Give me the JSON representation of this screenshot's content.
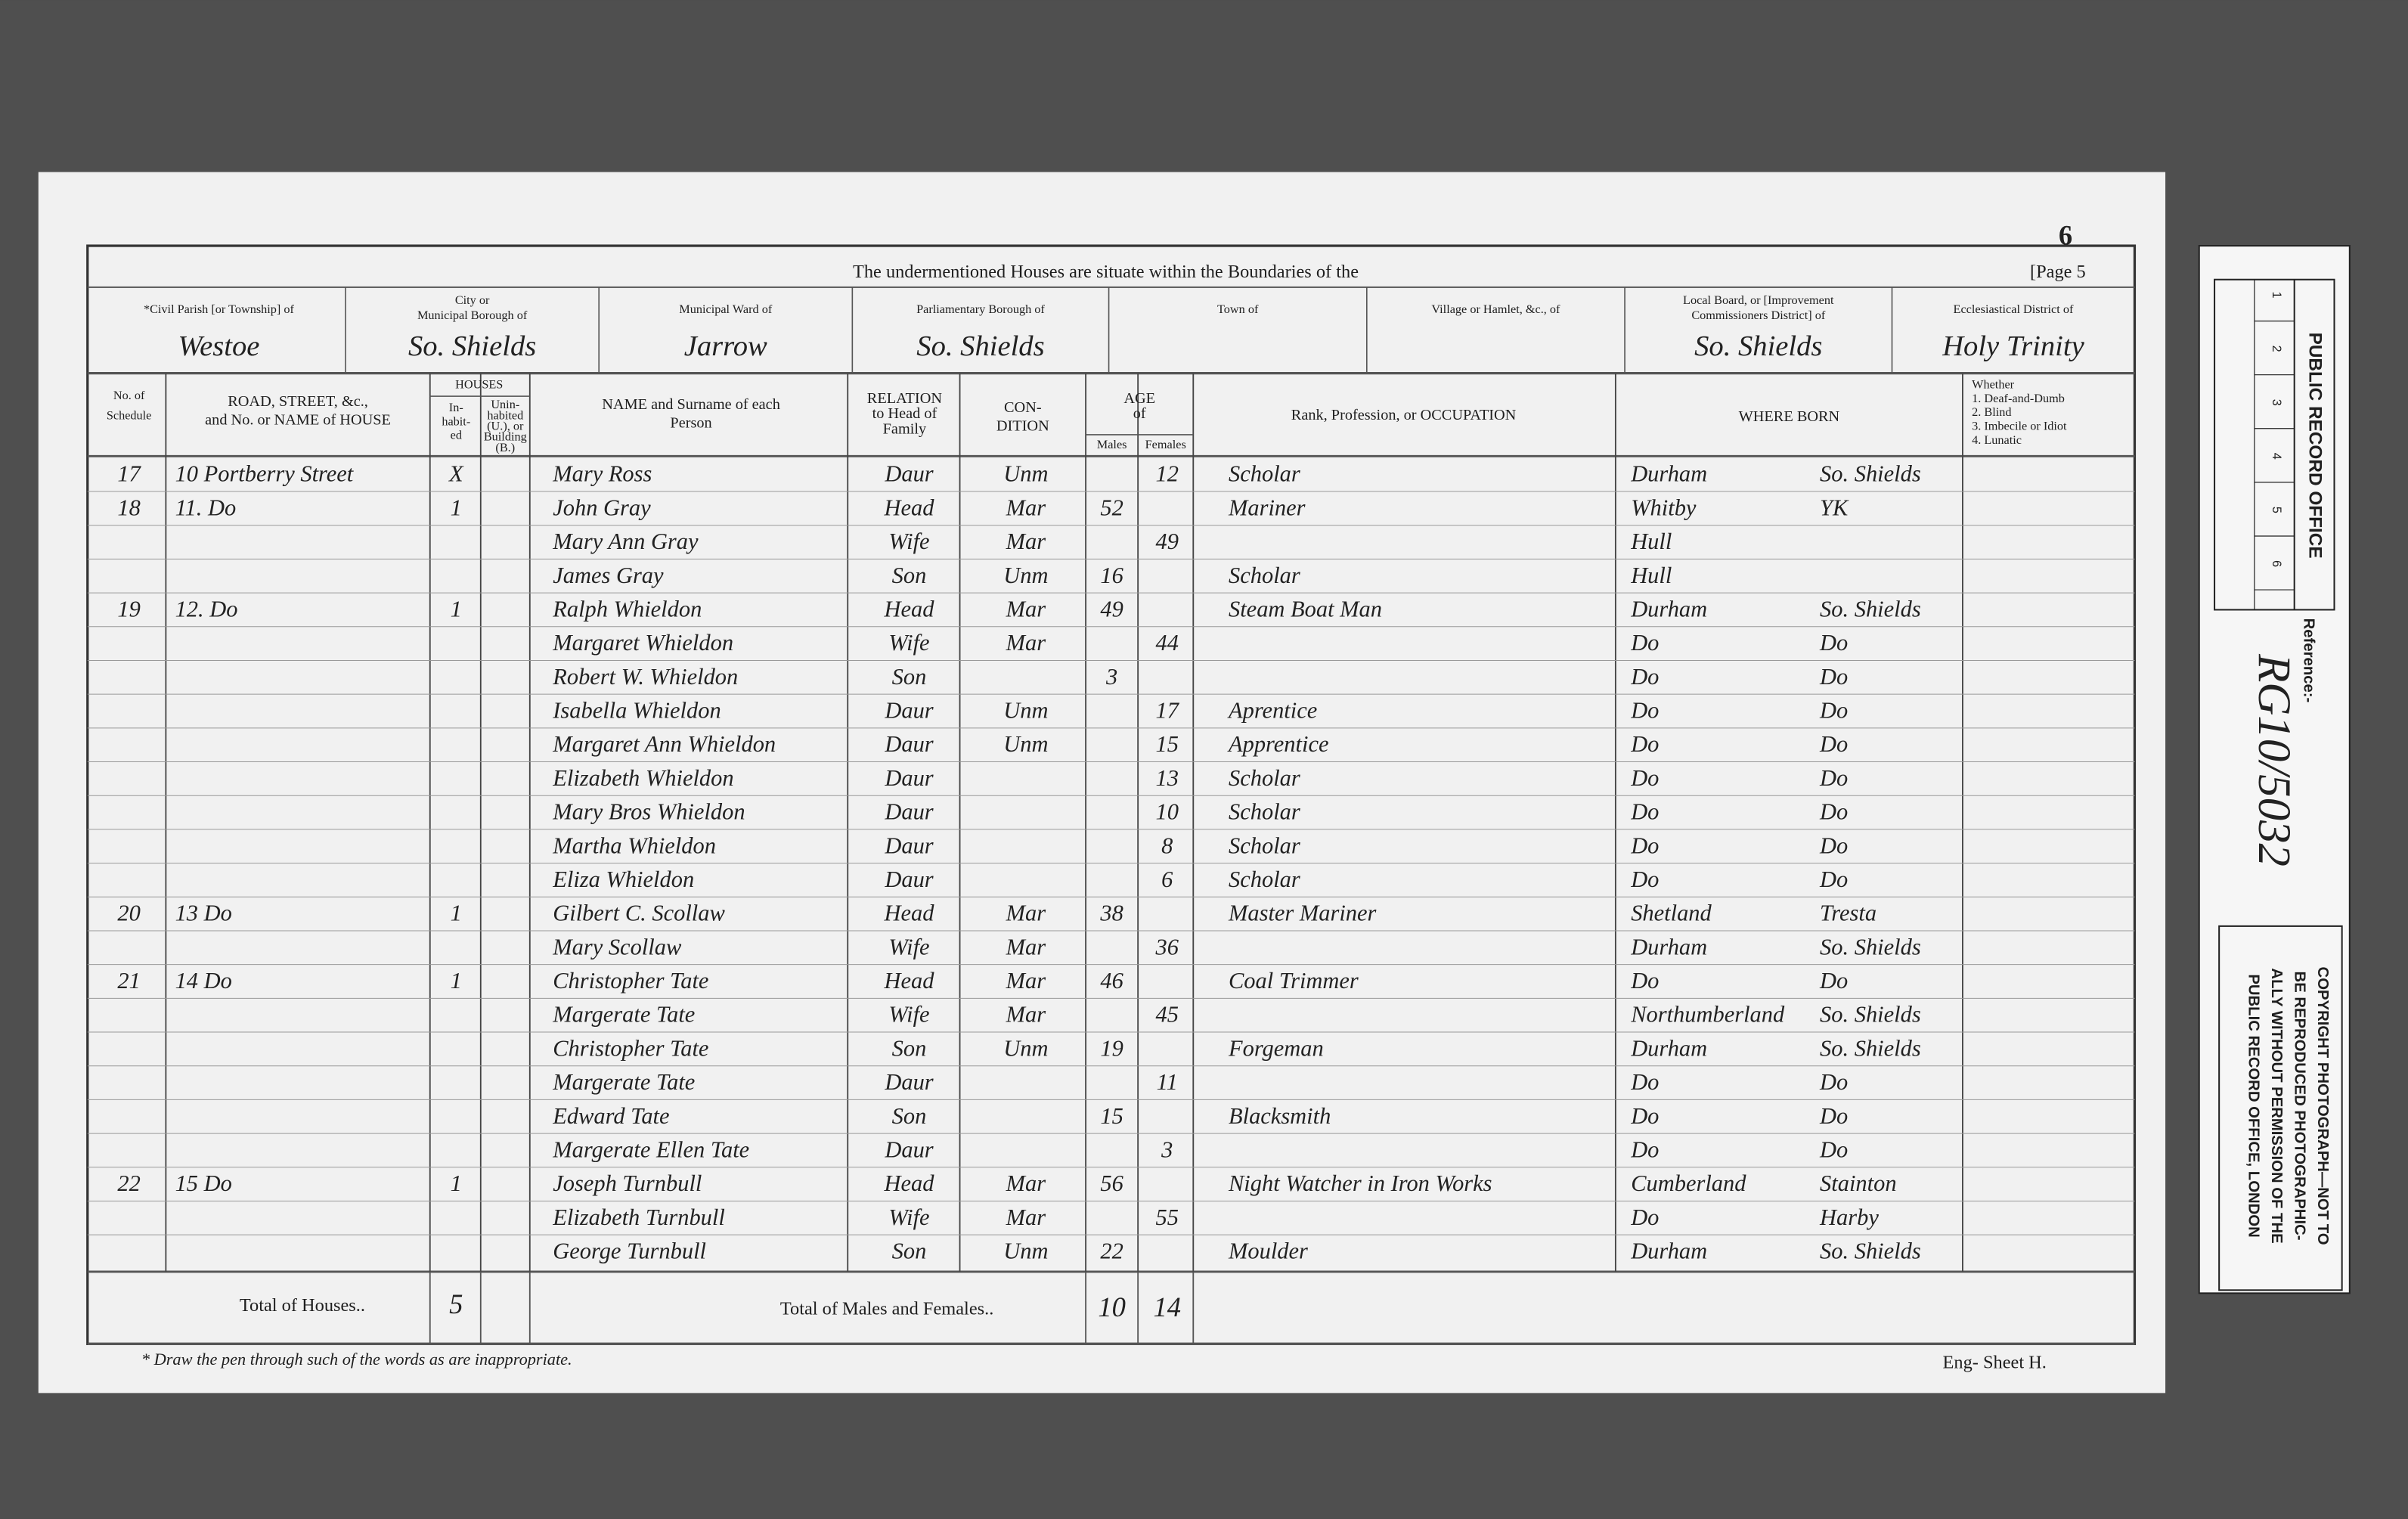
{
  "page_number": "6",
  "header": {
    "title": "The undermentioned Houses are situate within the Boundaries of the",
    "page": "[Page 5"
  },
  "boundaries": [
    {
      "label": [
        "*Civil Parish [or Township] of"
      ],
      "value": "Westoe"
    },
    {
      "label": [
        "City or",
        "Municipal Borough of"
      ],
      "value": "So. Shields"
    },
    {
      "label": [
        "Municipal Ward of"
      ],
      "value": "Jarrow"
    },
    {
      "label": [
        "Parliamentary Borough of"
      ],
      "value": "So. Shields"
    },
    {
      "label": [
        "Town of"
      ]
    },
    {
      "label": [
        "Village or Hamlet, &c., of"
      ]
    },
    {
      "label": [
        "Local Board, or [Improvement",
        "Commissioners District] of"
      ],
      "value": "So. Shields"
    },
    {
      "label": [
        "Ecclesiastical District of"
      ],
      "value": "Holy Trinity"
    }
  ],
  "column_headers": {
    "schedule": [
      "No. of",
      "Schedule"
    ],
    "address": [
      "ROAD, STREET, &c.,",
      "and No. or NAME of HOUSE"
    ],
    "houses": [
      "HOUSES"
    ],
    "inhabited": [
      "In-",
      "habit-",
      "ed"
    ],
    "uninhabited": [
      "Unin-",
      "habited",
      "(U.), or",
      "Building",
      "(B.)"
    ],
    "name": [
      "NAME and Surname of each",
      "Person"
    ],
    "relation": [
      "RELATION",
      "to Head of",
      "Family"
    ],
    "condition": [
      "CON-",
      "DITION"
    ],
    "age": [
      "AGE",
      "of"
    ],
    "males": [
      "Males"
    ],
    "females": [
      "Females"
    ],
    "occupation": [
      "Rank, Profession, or OCCUPATION"
    ],
    "where_born": [
      "WHERE BORN"
    ],
    "infirmity": [
      "Whether",
      "1. Deaf-and-Dumb",
      "2. Blind",
      "3. Imbecile or Idiot",
      "4. Lunatic"
    ]
  },
  "table": {
    "rows": [
      {
        "schedule": 17,
        "address": "10 Portberry Street",
        "inhabited": "X",
        "name": "Mary Ross",
        "relation": "Daur",
        "condition": "Unm",
        "female_age": 12,
        "occupation": "Scholar",
        "born_county": "Durham",
        "born_town": "So. Shields"
      },
      {
        "schedule": 18,
        "address": "11. Do",
        "inhabited": 1,
        "name": "John Gray",
        "relation": "Head",
        "condition": "Mar",
        "male_age": 52,
        "occupation": "Mariner",
        "born_county": "Whitby",
        "born_town": "YK"
      },
      {
        "name": "Mary Ann Gray",
        "relation": "Wife",
        "condition": "Mar",
        "female_age": 49,
        "born_county": "Hull"
      },
      {
        "name": "James Gray",
        "relation": "Son",
        "condition": "Unm",
        "male_age": 16,
        "occupation": "Scholar",
        "born_county": "Hull"
      },
      {
        "schedule": 19,
        "address": "12. Do",
        "inhabited": 1,
        "name": "Ralph Whieldon",
        "relation": "Head",
        "condition": "Mar",
        "male_age": 49,
        "occupation": "Steam Boat Man",
        "born_county": "Durham",
        "born_town": "So. Shields"
      },
      {
        "name": "Margaret Whieldon",
        "relation": "Wife",
        "condition": "Mar",
        "female_age": 44,
        "born_county": "Do",
        "born_town": "Do"
      },
      {
        "name": "Robert W. Whieldon",
        "relation": "Son",
        "male_age": 3,
        "born_county": "Do",
        "born_town": "Do"
      },
      {
        "name": "Isabella Whieldon",
        "relation": "Daur",
        "condition": "Unm",
        "female_age": 17,
        "occupation": "Aprentice",
        "born_county": "Do",
        "born_town": "Do"
      },
      {
        "name": "Margaret Ann Whieldon",
        "relation": "Daur",
        "condition": "Unm",
        "female_age": 15,
        "occupation": "Apprentice",
        "born_county": "Do",
        "born_town": "Do"
      },
      {
        "name": "Elizabeth Whieldon",
        "relation": "Daur",
        "female_age": 13,
        "occupation": "Scholar",
        "born_county": "Do",
        "born_town": "Do"
      },
      {
        "name": "Mary Bros Whieldon",
        "relation": "Daur",
        "female_age": 10,
        "occupation": "Scholar",
        "born_county": "Do",
        "born_town": "Do"
      },
      {
        "name": "Martha Whieldon",
        "relation": "Daur",
        "female_age": 8,
        "occupation": "Scholar",
        "born_county": "Do",
        "born_town": "Do"
      },
      {
        "name": "Eliza Whieldon",
        "relation": "Daur",
        "female_age": 6,
        "occupation": "Scholar",
        "born_county": "Do",
        "born_town": "Do"
      },
      {
        "schedule": 20,
        "address": "13 Do",
        "inhabited": 1,
        "name": "Gilbert C. Scollaw",
        "relation": "Head",
        "condition": "Mar",
        "male_age": 38,
        "occupation": "Master Mariner",
        "born_county": "Shetland",
        "born_town": "Tresta"
      },
      {
        "name": "Mary Scollaw",
        "relation": "Wife",
        "condition": "Mar",
        "female_age": 36,
        "born_county": "Durham",
        "born_town": "So. Shields"
      },
      {
        "schedule": 21,
        "address": "14 Do",
        "inhabited": 1,
        "name": "Christopher Tate",
        "relation": "Head",
        "condition": "Mar",
        "male_age": 46,
        "occupation": "Coal Trimmer",
        "born_county": "Do",
        "born_town": "Do"
      },
      {
        "name": "Margerate Tate",
        "relation": "Wife",
        "condition": "Mar",
        "female_age": 45,
        "born_county": "Northumberland",
        "born_town": "So. Shields"
      },
      {
        "name": "Christopher Tate",
        "relation": "Son",
        "condition": "Unm",
        "male_age": 19,
        "occupation": "Forgeman",
        "born_county": "Durham",
        "born_town": "So. Shields"
      },
      {
        "name": "Margerate Tate",
        "relation": "Daur",
        "female_age": 11,
        "born_county": "Do",
        "born_town": "Do"
      },
      {
        "name": "Edward Tate",
        "relation": "Son",
        "male_age": 15,
        "occupation": "Blacksmith",
        "born_county": "Do",
        "born_town": "Do"
      },
      {
        "name": "Margerate Ellen Tate",
        "relation": "Daur",
        "female_age": 3,
        "born_county": "Do",
        "born_town": "Do"
      },
      {
        "schedule": 22,
        "address": "15 Do",
        "inhabited": 1,
        "name": "Joseph Turnbull",
        "relation": "Head",
        "condition": "Mar",
        "male_age": 56,
        "occupation": "Night Watcher in Iron Works",
        "born_county": "Cumberland",
        "born_town": "Stainton"
      },
      {
        "name": "Elizabeth Turnbull",
        "relation": "Wife",
        "condition": "Mar",
        "female_age": 55,
        "born_county": "Do",
        "born_town": "Harby"
      },
      {
        "name": "George Turnbull",
        "relation": "Son",
        "condition": "Unm",
        "male_age": 22,
        "occupation": "Moulder",
        "born_county": "Durham",
        "born_town": "So. Shields"
      }
    ]
  },
  "totals": {
    "houses_label": "Total of Houses..",
    "houses": 5,
    "persons_label": "Total of Males and Females..",
    "males": 10,
    "females": 14
  },
  "footer": {
    "note": "* Draw the pen through such of the words as are inappropriate.",
    "sheet": "Eng- Sheet H."
  },
  "strip": {
    "office": "PUBLIC RECORD OFFICE",
    "ruler": [
      1,
      2,
      3,
      4,
      5,
      6
    ],
    "reference_label": "Reference:-",
    "reference": "RG10/5032",
    "copyright": [
      "COPYRIGHT PHOTOGRAPH—NOT TO",
      "BE REPRODUCED PHOTOGRAPHIC-",
      "ALLY WITHOUT PERMISSION OF THE",
      "PUBLIC RECORD OFFICE, LONDON"
    ]
  }
}
